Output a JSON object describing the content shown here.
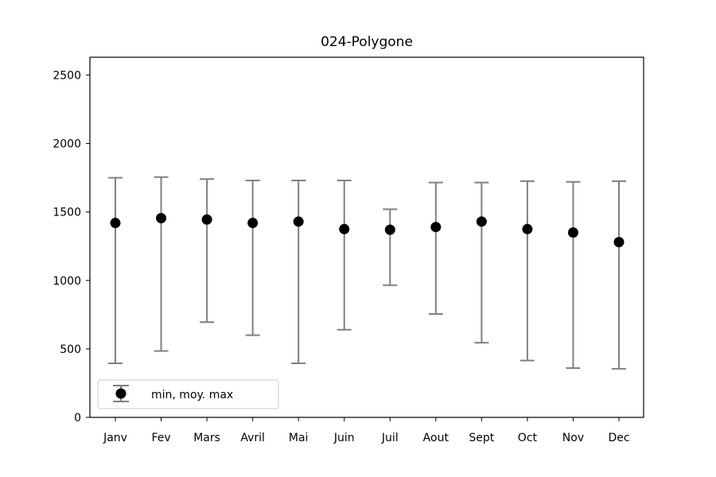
{
  "chart_data": {
    "type": "errorbar",
    "title": "024-Polygone",
    "xlabel": "",
    "ylabel": "",
    "categories": [
      "Janv",
      "Fev",
      "Mars",
      "Avril",
      "Mai",
      "Juin",
      "Juil",
      "Aout",
      "Sept",
      "Oct",
      "Nov",
      "Dec"
    ],
    "series": [
      {
        "name": "min, moy. max",
        "mean": [
          1420,
          1455,
          1445,
          1420,
          1430,
          1375,
          1370,
          1390,
          1430,
          1375,
          1350,
          1280
        ],
        "min": [
          395,
          485,
          695,
          600,
          395,
          640,
          965,
          755,
          545,
          415,
          360,
          355
        ],
        "max": [
          1750,
          1755,
          1740,
          1730,
          1730,
          1730,
          1520,
          1715,
          1715,
          1725,
          1720,
          1725
        ],
        "marker_color": "#000000",
        "errorbar_color": "#808080"
      }
    ],
    "ylim": [
      0,
      2630
    ],
    "yticks": [
      0,
      500,
      1000,
      1500,
      2000,
      2500
    ],
    "grid": false,
    "legend_position": "lower-left"
  }
}
